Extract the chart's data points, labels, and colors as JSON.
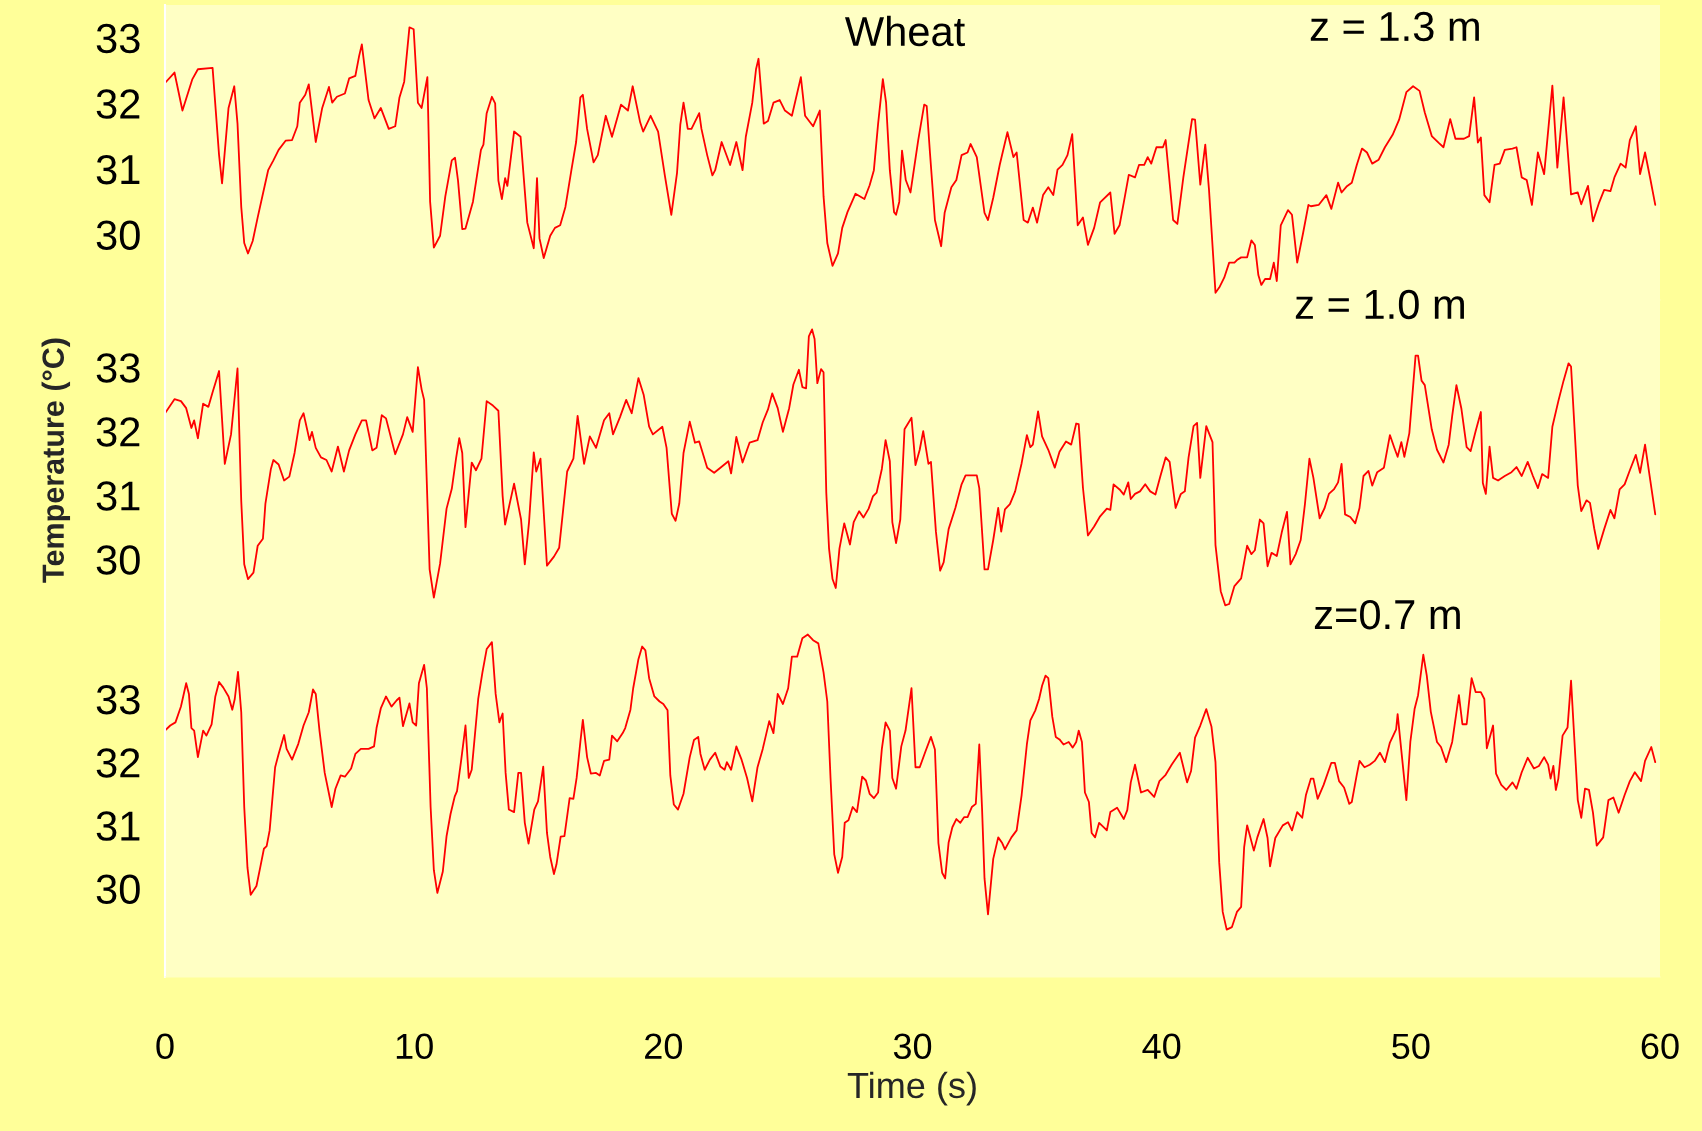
{
  "chart_data": [
    {
      "type": "line",
      "xlim": [
        0,
        60
      ],
      "ylim": [
        29.0,
        33.5
      ],
      "yticks": [
        30,
        31,
        32,
        33
      ],
      "tick_labels": "y",
      "annotations": [
        "Wheat",
        "z = 1.3 m"
      ],
      "series": [
        {
          "color": "#ff0000",
          "x": [
            0,
            0.38,
            0.7,
            1.1,
            1.32,
            1.91,
            2.17,
            2.29,
            2.55,
            2.78,
            2.91,
            3.06,
            3.18,
            3.33,
            3.52,
            3.72,
            3.93,
            4.14,
            4.35,
            4.56,
            4.84,
            5.1,
            5.31,
            5.41,
            5.63,
            5.77,
            6.05,
            6.31,
            6.58,
            6.71,
            6.9,
            7.22,
            7.39,
            7.64,
            7.79,
            7.9,
            8.17,
            8.41,
            8.66,
            8.98,
            9.24,
            9.41,
            9.6,
            9.81,
            9.98,
            10.15,
            10.3,
            10.53,
            10.64,
            10.79,
            11.04,
            11.25,
            11.51,
            11.64,
            11.76,
            11.93,
            12.06,
            12.36,
            12.68,
            12.78,
            12.91,
            13.12,
            13.25,
            13.38,
            13.52,
            13.65,
            13.74,
            14.01,
            14.27,
            14.54,
            14.8,
            14.93,
            15.03,
            15.2,
            15.46,
            15.65,
            15.86,
            16.07,
            16.31,
            16.5,
            16.67,
            16.77,
            16.94,
            17.2,
            17.37,
            17.69,
            17.94,
            18.3,
            18.58,
            18.77,
            19.07,
            19.19,
            19.49,
            19.79,
            20.06,
            20.32,
            20.55,
            20.68,
            20.81,
            20.98,
            21.13,
            21.44,
            21.53,
            21.76,
            21.97,
            22.08,
            22.34,
            22.68,
            22.93,
            23.18,
            23.31,
            23.57,
            23.72,
            23.82,
            24.03,
            24.2,
            24.42,
            24.67,
            24.88,
            25.16,
            25.52,
            25.69,
            26.01,
            26.28,
            26.43,
            26.58,
            26.79,
            27.01,
            27.18,
            27.39,
            27.71,
            28.07,
            28.28,
            28.45,
            28.62,
            28.81,
            28.94,
            29.09,
            29.26,
            29.34,
            29.47,
            29.58,
            29.73,
            29.92,
            30.23,
            30.47,
            30.57,
            30.7,
            30.9,
            31.15,
            31.29,
            31.56,
            31.76,
            31.97,
            32.21,
            32.33,
            32.58,
            32.89,
            33.03,
            33.24,
            33.5,
            33.81,
            34.05,
            34.18,
            34.46,
            34.63,
            34.83,
            35.0,
            35.24,
            35.45,
            35.65,
            35.82,
            36.02,
            36.22,
            36.41,
            36.63,
            36.84,
            37.04,
            37.29,
            37.53,
            37.94,
            38.11,
            38.31,
            38.48,
            38.68,
            38.93,
            39.09,
            39.3,
            39.44,
            39.58,
            39.79,
            40.05,
            40.16,
            40.46,
            40.63,
            40.87,
            41.22,
            41.34,
            41.55,
            41.75,
            41.9,
            42.16,
            42.31,
            42.51,
            42.71,
            42.92,
            43.02,
            43.19,
            43.43,
            43.6,
            43.74,
            43.88,
            44.0,
            44.15,
            44.35,
            44.5,
            44.62,
            44.78,
            45.07,
            45.23,
            45.44,
            45.68,
            45.89,
            45.99,
            46.3,
            46.61,
            46.81,
            47.08,
            47.22,
            47.42,
            47.63,
            47.83,
            48.04,
            48.24,
            48.45,
            48.71,
            48.96,
            49.27,
            49.53,
            49.82,
            50.09,
            50.35,
            50.56,
            50.84,
            51.11,
            51.31,
            51.58,
            51.79,
            52.13,
            52.34,
            52.54,
            52.69,
            52.81,
            52.95,
            53.16,
            53.36,
            53.57,
            53.77,
            54.08,
            54.24,
            54.45,
            54.65,
            54.86,
            55.1,
            55.35,
            55.68,
            55.88,
            56.13,
            56.43,
            56.7,
            56.84,
            57.11,
            57.31,
            57.56,
            57.76,
            58.01,
            58.17,
            58.42,
            58.62,
            58.79,
            59.03,
            59.2,
            59.4,
            59.61,
            59.81
          ],
          "values": [
            32.31,
            32.47,
            31.89,
            32.37,
            32.52,
            32.54,
            31.21,
            30.78,
            31.93,
            32.26,
            31.69,
            30.42,
            29.87,
            29.71,
            29.9,
            30.26,
            30.62,
            30.98,
            31.13,
            31.29,
            31.43,
            31.44,
            31.65,
            32.01,
            32.13,
            32.29,
            31.41,
            31.93,
            32.25,
            32.01,
            32.1,
            32.15,
            32.38,
            32.42,
            32.72,
            32.9,
            32.05,
            31.77,
            31.93,
            31.61,
            31.65,
            32.09,
            32.33,
            33.16,
            33.13,
            32.01,
            31.93,
            32.4,
            30.5,
            29.8,
            29.98,
            30.58,
            31.13,
            31.17,
            30.82,
            30.08,
            30.09,
            30.5,
            31.29,
            31.37,
            31.85,
            32.1,
            32.0,
            30.82,
            30.54,
            30.86,
            30.74,
            31.57,
            31.49,
            30.18,
            29.79,
            30.86,
            29.94,
            29.64,
            29.98,
            30.1,
            30.14,
            30.42,
            30.98,
            31.41,
            32.09,
            32.13,
            31.61,
            31.1,
            31.21,
            31.81,
            31.49,
            31.98,
            31.89,
            32.26,
            31.71,
            31.57,
            31.81,
            31.57,
            30.9,
            30.3,
            30.94,
            31.67,
            32.01,
            31.61,
            31.61,
            31.85,
            31.61,
            31.21,
            30.9,
            30.98,
            31.41,
            31.06,
            31.41,
            30.98,
            31.49,
            32.01,
            32.52,
            32.68,
            31.69,
            31.73,
            32.01,
            32.05,
            31.89,
            31.81,
            32.4,
            31.81,
            31.65,
            31.89,
            30.58,
            29.87,
            29.52,
            29.71,
            30.1,
            30.34,
            30.62,
            30.54,
            30.75,
            30.98,
            31.69,
            32.37,
            32.01,
            30.98,
            30.34,
            30.3,
            30.5,
            31.28,
            30.83,
            30.64,
            31.44,
            31.98,
            31.96,
            31.25,
            30.22,
            29.82,
            30.33,
            30.72,
            30.83,
            31.21,
            31.25,
            31.38,
            31.18,
            30.33,
            30.22,
            30.56,
            31.06,
            31.56,
            31.18,
            31.25,
            30.22,
            30.18,
            30.41,
            30.18,
            30.6,
            30.72,
            30.6,
            30.99,
            31.06,
            31.21,
            31.53,
            30.14,
            30.26,
            29.84,
            30.1,
            30.49,
            30.64,
            30.01,
            30.14,
            30.49,
            30.91,
            30.87,
            31.06,
            31.06,
            31.18,
            31.08,
            31.33,
            31.33,
            31.44,
            30.22,
            30.16,
            30.87,
            31.76,
            31.75,
            30.76,
            31.37,
            30.68,
            29.11,
            29.19,
            29.34,
            29.57,
            29.57,
            29.61,
            29.65,
            29.65,
            29.91,
            29.84,
            29.38,
            29.23,
            29.32,
            29.32,
            29.57,
            29.29,
            30.14,
            30.37,
            30.3,
            29.57,
            30.03,
            30.45,
            30.43,
            30.45,
            30.6,
            30.39,
            30.79,
            30.64,
            30.73,
            30.79,
            31.06,
            31.31,
            31.25,
            31.08,
            31.14,
            31.33,
            31.52,
            31.75,
            32.17,
            32.26,
            32.19,
            31.86,
            31.5,
            31.4,
            31.33,
            31.76,
            31.46,
            31.46,
            31.5,
            32.09,
            31.4,
            31.48,
            30.6,
            30.49,
            31.06,
            31.08,
            31.29,
            31.31,
            31.33,
            30.87,
            30.83,
            30.45,
            31.25,
            30.92,
            32.27,
            31.02,
            32.09,
            30.61,
            30.64,
            30.46,
            30.74,
            30.2,
            30.49,
            30.68,
            30.66,
            30.87,
            31.08,
            31.02,
            31.44,
            31.65,
            30.92,
            31.25,
            30.85,
            30.45
          ]
        }
      ]
    },
    {
      "type": "line",
      "xlim": [
        0,
        60
      ],
      "ylim": [
        29.05,
        34.05
      ],
      "yticks": [
        30,
        31,
        32,
        33
      ],
      "tick_labels": "y",
      "ylabel": "Temperature (°C)",
      "annotations": [
        "z = 1.0 m"
      ],
      "series": [
        {
          "color": "#ff0000",
          "x": [
            0,
            0.38,
            0.64,
            0.85,
            1.06,
            1.17,
            1.32,
            1.53,
            1.74,
            1.91,
            2.17,
            2.4,
            2.65,
            2.91,
            3.06,
            3.18,
            3.33,
            3.55,
            3.72,
            3.93,
            4.03,
            4.25,
            4.35,
            4.56,
            4.78,
            4.99,
            5.2,
            5.41,
            5.56,
            5.8,
            5.9,
            6.05,
            6.26,
            6.48,
            6.69,
            6.94,
            7.18,
            7.39,
            7.64,
            7.9,
            8.07,
            8.32,
            8.49,
            8.7,
            8.87,
            9.24,
            9.55,
            9.72,
            9.94,
            10.15,
            10.3,
            10.4,
            10.62,
            10.79,
            11.04,
            11.3,
            11.51,
            11.68,
            11.81,
            11.93,
            12.06,
            12.31,
            12.48,
            12.7,
            12.91,
            13.16,
            13.38,
            13.55,
            13.65,
            14.01,
            14.29,
            14.44,
            14.61,
            14.8,
            14.9,
            15.07,
            15.33,
            15.61,
            15.82,
            16.14,
            16.39,
            16.56,
            16.82,
            17.05,
            17.3,
            17.62,
            17.83,
            17.98,
            18.26,
            18.51,
            18.73,
            19.0,
            19.21,
            19.43,
            19.58,
            19.96,
            20.13,
            20.34,
            20.49,
            20.64,
            20.81,
            21.06,
            21.27,
            21.44,
            21.76,
            22.04,
            22.29,
            22.61,
            22.72,
            22.93,
            23.18,
            23.46,
            23.78,
            23.99,
            24.2,
            24.37,
            24.59,
            24.8,
            25.05,
            25.22,
            25.44,
            25.58,
            25.73,
            25.84,
            25.97,
            26.07,
            26.18,
            26.33,
            26.43,
            26.54,
            26.65,
            26.79,
            26.92,
            27.07,
            27.26,
            27.49,
            27.64,
            27.86,
            28.03,
            28.24,
            28.41,
            28.56,
            28.77,
            28.92,
            29.09,
            29.19,
            29.34,
            29.51,
            29.68,
            29.96,
            30.12,
            30.29,
            30.43,
            30.64,
            30.74,
            30.94,
            31.11,
            31.25,
            31.45,
            31.72,
            31.97,
            32.13,
            32.33,
            32.58,
            32.68,
            32.89,
            33.03,
            33.24,
            33.44,
            33.56,
            33.71,
            33.91,
            34.12,
            34.38,
            34.59,
            34.73,
            34.83,
            35.04,
            35.2,
            35.45,
            35.71,
            35.9,
            36.16,
            36.37,
            36.57,
            36.67,
            36.84,
            37.04,
            37.29,
            37.53,
            37.8,
            37.94,
            38.07,
            38.31,
            38.48,
            38.66,
            38.76,
            38.93,
            39.13,
            39.34,
            39.54,
            39.75,
            39.95,
            40.16,
            40.32,
            40.56,
            40.77,
            40.93,
            41.08,
            41.28,
            41.42,
            41.55,
            41.79,
            42.04,
            42.16,
            42.37,
            42.55,
            42.71,
            42.92,
            43.19,
            43.43,
            43.6,
            43.74,
            43.94,
            44.09,
            44.25,
            44.41,
            44.62,
            44.82,
            45.03,
            45.17,
            45.38,
            45.58,
            45.75,
            45.93,
            46.09,
            46.34,
            46.54,
            46.71,
            46.91,
            47.08,
            47.22,
            47.36,
            47.57,
            47.77,
            47.94,
            48.1,
            48.3,
            48.45,
            48.65,
            48.92,
            49.16,
            49.33,
            49.47,
            49.62,
            49.74,
            49.94,
            50.19,
            50.29,
            50.43,
            50.56,
            50.84,
            51.05,
            51.31,
            51.52,
            51.66,
            51.83,
            52.03,
            52.24,
            52.4,
            52.6,
            52.81,
            52.89,
            53.01,
            53.16,
            53.3,
            53.5,
            53.77,
            54.04,
            54.24,
            54.45,
            54.69,
            54.9,
            55.1,
            55.27,
            55.51,
            55.68,
            55.92,
            56.13,
            56.33,
            56.43,
            56.7,
            56.84,
            57.05,
            57.19,
            57.36,
            57.52,
            57.76,
            58.01,
            58.17,
            58.38,
            58.58,
            58.79,
            59.03,
            59.2,
            59.4,
            59.61,
            59.81
          ],
          "values": [
            32.28,
            32.5,
            32.47,
            32.36,
            32.05,
            32.17,
            31.89,
            32.43,
            32.38,
            32.61,
            32.94,
            31.49,
            31.95,
            32.98,
            30.91,
            29.92,
            29.69,
            29.79,
            30.21,
            30.32,
            30.87,
            31.41,
            31.55,
            31.48,
            31.23,
            31.29,
            31.66,
            32.17,
            32.28,
            31.86,
            31.99,
            31.74,
            31.59,
            31.55,
            31.37,
            31.76,
            31.37,
            31.7,
            31.95,
            32.17,
            32.17,
            31.7,
            31.74,
            32.25,
            32.2,
            31.64,
            31.95,
            32.22,
            31.99,
            33.0,
            32.65,
            32.49,
            29.84,
            29.4,
            29.93,
            30.79,
            31.1,
            31.57,
            31.89,
            31.66,
            30.5,
            31.51,
            31.39,
            31.57,
            32.47,
            32.4,
            32.32,
            30.99,
            30.54,
            31.18,
            30.62,
            29.92,
            30.58,
            31.67,
            31.37,
            31.57,
            29.9,
            30.04,
            30.18,
            31.37,
            31.57,
            32.24,
            31.49,
            31.92,
            31.74,
            32.17,
            32.28,
            31.95,
            32.22,
            32.49,
            32.28,
            32.83,
            32.57,
            32.07,
            31.95,
            32.07,
            31.74,
            30.71,
            30.6,
            30.87,
            31.66,
            32.15,
            31.82,
            31.84,
            31.43,
            31.35,
            31.43,
            31.53,
            31.34,
            31.91,
            31.51,
            31.82,
            31.86,
            32.14,
            32.34,
            32.59,
            32.36,
            31.99,
            32.36,
            32.73,
            32.96,
            32.69,
            32.67,
            33.48,
            33.59,
            33.44,
            32.75,
            32.97,
            32.92,
            31.04,
            30.17,
            29.69,
            29.55,
            30.17,
            30.56,
            30.23,
            30.58,
            30.75,
            30.65,
            30.79,
            30.98,
            31.04,
            31.41,
            31.86,
            31.53,
            30.58,
            30.25,
            30.62,
            32.03,
            32.21,
            31.47,
            31.71,
            32.0,
            31.49,
            31.52,
            30.43,
            29.82,
            29.95,
            30.47,
            30.8,
            31.17,
            31.31,
            31.31,
            31.31,
            31.11,
            29.84,
            29.84,
            30.3,
            30.8,
            30.43,
            30.78,
            30.86,
            31.06,
            31.5,
            31.94,
            31.75,
            31.79,
            32.31,
            31.92,
            31.71,
            31.43,
            31.68,
            31.84,
            31.79,
            32.12,
            32.11,
            31.12,
            30.37,
            30.51,
            30.67,
            30.79,
            30.77,
            31.17,
            31.09,
            31.01,
            31.2,
            30.94,
            31.02,
            31.06,
            31.17,
            31.06,
            31.01,
            31.3,
            31.59,
            31.52,
            30.8,
            31.02,
            31.06,
            31.59,
            32.08,
            32.13,
            31.27,
            32.08,
            31.83,
            30.22,
            29.5,
            29.28,
            29.3,
            29.58,
            29.7,
            30.21,
            30.08,
            30.14,
            30.62,
            30.56,
            29.89,
            30.1,
            30.05,
            30.42,
            30.74,
            29.92,
            30.08,
            30.3,
            30.86,
            31.57,
            31.27,
            30.64,
            30.8,
            31.02,
            31.09,
            31.2,
            31.49,
            30.7,
            30.66,
            30.56,
            30.8,
            31.3,
            31.38,
            31.15,
            31.36,
            31.43,
            31.94,
            31.75,
            31.6,
            31.83,
            31.6,
            31.97,
            33.18,
            33.18,
            32.79,
            32.72,
            32.03,
            31.71,
            31.51,
            31.79,
            32.24,
            32.72,
            32.35,
            31.75,
            31.69,
            32.0,
            32.3,
            31.19,
            31.02,
            31.76,
            31.27,
            31.23,
            31.3,
            31.36,
            31.44,
            31.3,
            31.52,
            31.3,
            31.11,
            31.33,
            31.27,
            32.07,
            32.47,
            32.79,
            33.06,
            33.01,
            31.15,
            30.75,
            30.92,
            30.88,
            30.48,
            30.16,
            30.47,
            30.77,
            30.64,
            31.09,
            31.17,
            31.39,
            31.63,
            31.35,
            31.79,
            31.23,
            30.7
          ]
        }
      ]
    },
    {
      "type": "line",
      "xlim": [
        0,
        60
      ],
      "ylim": [
        28.6,
        34.25
      ],
      "yticks": [
        30,
        31,
        32,
        33
      ],
      "xticks": [
        0,
        10,
        20,
        30,
        40,
        50,
        60
      ],
      "xlabel": "Time (s)",
      "annotations": [
        "z=0.7 m"
      ],
      "series": [
        {
          "color": "#ff0000",
          "x": [
            0,
            0.21,
            0.42,
            0.64,
            0.85,
            0.96,
            1.06,
            1.17,
            1.32,
            1.53,
            1.66,
            1.87,
            2.02,
            2.17,
            2.34,
            2.55,
            2.7,
            2.8,
            2.93,
            3.06,
            3.18,
            3.31,
            3.44,
            3.67,
            3.82,
            3.97,
            4.08,
            4.2,
            4.42,
            4.56,
            4.78,
            4.88,
            5.1,
            5.35,
            5.56,
            5.77,
            5.94,
            6.05,
            6.2,
            6.41,
            6.69,
            6.84,
            7.05,
            7.22,
            7.47,
            7.64,
            7.86,
            8.17,
            8.39,
            8.49,
            8.66,
            8.87,
            9.09,
            9.3,
            9.41,
            9.55,
            9.81,
            9.94,
            10.08,
            10.19,
            10.4,
            10.51,
            10.66,
            10.79,
            10.93,
            11.15,
            11.3,
            11.46,
            11.63,
            11.72,
            11.89,
            12.06,
            12.19,
            12.31,
            12.57,
            12.74,
            12.91,
            13.12,
            13.27,
            13.42,
            13.55,
            13.67,
            13.8,
            14.01,
            14.18,
            14.29,
            14.44,
            14.59,
            14.82,
            14.97,
            15.18,
            15.33,
            15.46,
            15.61,
            15.71,
            15.88,
            16.03,
            16.24,
            16.39,
            16.52,
            16.67,
            16.77,
            16.94,
            17.09,
            17.3,
            17.45,
            17.62,
            17.83,
            17.94,
            18.15,
            18.37,
            18.47,
            18.68,
            18.79,
            19.0,
            19.15,
            19.28,
            19.43,
            19.64,
            19.85,
            20.0,
            20.17,
            20.28,
            20.42,
            20.59,
            20.81,
            21.06,
            21.23,
            21.4,
            21.49,
            21.66,
            21.87,
            22.08,
            22.29,
            22.46,
            22.55,
            22.72,
            22.93,
            23.14,
            23.36,
            23.57,
            23.78,
            23.99,
            24.25,
            24.42,
            24.59,
            24.8,
            25.01,
            25.16,
            25.37,
            25.58,
            25.8,
            26.01,
            26.22,
            26.43,
            26.58,
            26.71,
            26.86,
            27.01,
            27.18,
            27.28,
            27.43,
            27.6,
            27.77,
            27.98,
            28.13,
            28.28,
            28.45,
            28.62,
            28.77,
            28.92,
            29.09,
            29.19,
            29.34,
            29.55,
            29.72,
            29.96,
            30.12,
            30.29,
            30.53,
            30.74,
            30.9,
            31.04,
            31.19,
            31.31,
            31.45,
            31.6,
            31.76,
            31.92,
            32.07,
            32.21,
            32.38,
            32.54,
            32.68,
            32.79,
            32.89,
            33.03,
            33.24,
            33.44,
            33.6,
            33.71,
            33.97,
            34.18,
            34.38,
            34.59,
            34.73,
            34.93,
            35.08,
            35.2,
            35.34,
            35.45,
            35.61,
            35.75,
            35.9,
            36.06,
            36.27,
            36.43,
            36.57,
            36.67,
            36.8,
            36.92,
            37.08,
            37.19,
            37.33,
            37.49,
            37.7,
            37.8,
            37.94,
            38.21,
            38.48,
            38.62,
            38.76,
            38.93,
            39.17,
            39.44,
            39.7,
            39.91,
            40.16,
            40.4,
            40.73,
            41.02,
            41.18,
            41.34,
            41.55,
            41.79,
            42.0,
            42.16,
            42.31,
            42.45,
            42.61,
            42.82,
            43.02,
            43.19,
            43.31,
            43.43,
            43.7,
            43.84,
            44.09,
            44.25,
            44.35,
            44.56,
            44.86,
            45.07,
            45.23,
            45.44,
            45.64,
            45.79,
            45.99,
            46.09,
            46.26,
            46.5,
            46.81,
            46.95,
            47.12,
            47.32,
            47.53,
            47.63,
            47.83,
            47.94,
            48.14,
            48.35,
            48.55,
            48.76,
            48.96,
            49.16,
            49.41,
            49.47,
            49.62,
            49.82,
            49.98,
            50.15,
            50.29,
            50.5,
            50.64,
            50.8,
            51.05,
            51.21,
            51.42,
            51.66,
            51.93,
            52.07,
            52.24,
            52.44,
            52.6,
            52.81,
            52.95,
            53.05,
            53.3,
            53.42,
            53.63,
            53.83,
            54.08,
            54.24,
            54.45,
            54.69,
            54.94,
            55.14,
            55.35,
            55.51,
            55.61,
            55.72,
            55.82,
            55.92,
            56.09,
            56.29,
            56.43,
            56.7,
            56.84,
            56.99,
            57.15,
            57.31,
            57.46,
            57.72,
            57.93,
            58.13,
            58.34,
            58.58,
            58.79,
            58.99,
            59.24,
            59.4,
            59.65,
            59.81
          ],
          "values": [
            32.5,
            32.58,
            32.63,
            32.88,
            33.25,
            33.08,
            32.54,
            32.5,
            32.08,
            32.5,
            32.42,
            32.6,
            33.04,
            33.27,
            33.18,
            33.04,
            32.83,
            33.0,
            33.43,
            32.79,
            31.29,
            30.33,
            29.9,
            30.04,
            30.33,
            30.63,
            30.67,
            30.92,
            31.92,
            32.13,
            32.43,
            32.21,
            32.04,
            32.29,
            32.58,
            32.79,
            33.15,
            33.08,
            32.5,
            31.83,
            31.29,
            31.58,
            31.79,
            31.77,
            31.9,
            32.13,
            32.21,
            32.21,
            32.25,
            32.54,
            32.85,
            33.04,
            32.88,
            32.98,
            33.02,
            32.57,
            32.93,
            32.63,
            32.58,
            33.25,
            33.54,
            33.17,
            31.29,
            30.29,
            29.93,
            30.27,
            30.83,
            31.18,
            31.46,
            31.54,
            32.04,
            32.58,
            31.75,
            31.88,
            33.0,
            33.42,
            33.79,
            33.9,
            33.08,
            32.63,
            32.77,
            31.83,
            31.25,
            31.21,
            31.83,
            31.83,
            31.04,
            30.71,
            31.25,
            31.38,
            31.93,
            30.88,
            30.5,
            30.23,
            30.38,
            30.82,
            30.83,
            31.43,
            31.42,
            31.75,
            32.32,
            32.67,
            32.08,
            31.82,
            31.83,
            31.79,
            32.02,
            32.04,
            32.42,
            32.33,
            32.46,
            32.54,
            32.83,
            33.17,
            33.63,
            33.83,
            33.77,
            33.33,
            33.04,
            32.96,
            32.92,
            32.82,
            31.79,
            31.33,
            31.25,
            31.5,
            32.08,
            32.35,
            32.4,
            32.13,
            31.88,
            32.04,
            32.15,
            31.93,
            31.88,
            32.0,
            31.88,
            32.25,
            32.04,
            31.75,
            31.38,
            31.92,
            32.21,
            32.65,
            32.46,
            33.08,
            32.92,
            33.17,
            33.67,
            33.67,
            33.96,
            34.02,
            33.93,
            33.88,
            33.42,
            32.96,
            31.75,
            30.54,
            30.25,
            30.5,
            31.04,
            31.08,
            31.29,
            31.21,
            31.77,
            31.71,
            31.5,
            31.43,
            31.52,
            32.21,
            32.63,
            32.5,
            31.75,
            31.58,
            32.25,
            32.5,
            33.17,
            31.92,
            31.92,
            32.18,
            32.4,
            32.2,
            30.72,
            30.25,
            30.16,
            30.73,
            30.97,
            31.1,
            31.04,
            31.13,
            31.13,
            31.29,
            31.34,
            32.28,
            31.28,
            30.16,
            29.59,
            30.47,
            30.81,
            30.72,
            30.62,
            30.81,
            30.92,
            31.48,
            32.28,
            32.66,
            32.82,
            33.0,
            33.21,
            33.37,
            33.33,
            32.72,
            32.4,
            32.36,
            32.28,
            32.32,
            32.23,
            32.32,
            32.5,
            32.32,
            31.52,
            31.37,
            30.88,
            30.81,
            31.04,
            30.96,
            30.92,
            31.21,
            31.28,
            31.1,
            31.24,
            31.68,
            31.96,
            31.52,
            31.56,
            31.45,
            31.7,
            31.8,
            31.96,
            32.15,
            31.68,
            31.86,
            32.39,
            32.58,
            32.84,
            32.56,
            32.0,
            30.41,
            29.63,
            29.35,
            29.39,
            29.63,
            29.71,
            30.65,
            31.0,
            30.6,
            30.81,
            31.1,
            30.8,
            30.35,
            30.8,
            31.0,
            31.05,
            30.92,
            31.21,
            31.12,
            31.48,
            31.74,
            31.74,
            31.42,
            31.64,
            31.99,
            31.99,
            31.7,
            31.6,
            31.34,
            31.37,
            31.8,
            32.02,
            31.92,
            31.96,
            32.02,
            32.15,
            32.0,
            32.31,
            32.52,
            32.76,
            32.18,
            31.4,
            32.32,
            32.84,
            33.06,
            33.7,
            33.37,
            32.8,
            32.32,
            32.24,
            32.0,
            32.32,
            33.06,
            32.6,
            32.6,
            33.33,
            33.11,
            33.11,
            33.0,
            32.22,
            32.58,
            31.82,
            31.64,
            31.56,
            31.68,
            31.58,
            31.84,
            32.07,
            31.9,
            31.94,
            32.08,
            31.96,
            31.74,
            31.94,
            31.56,
            31.74,
            32.42,
            32.55,
            33.29,
            31.4,
            31.12,
            31.58,
            31.56,
            31.2,
            30.68,
            30.81,
            31.4,
            31.44,
            31.2,
            31.48,
            31.7,
            31.84,
            31.7,
            32.02,
            32.24,
            32.0
          ]
        }
      ]
    }
  ]
}
